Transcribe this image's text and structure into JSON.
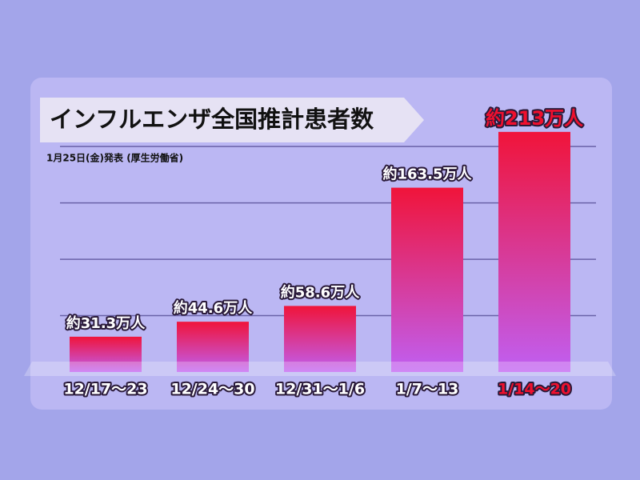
{
  "chart_data": {
    "type": "bar",
    "title": "インフルエンザ全国推計患者数",
    "subtitle": "1月25日(金)発表 (厚生労働省)",
    "categories": [
      "12/17〜23",
      "12/24〜30",
      "12/31〜1/6",
      "1/7〜13",
      "1/14〜20"
    ],
    "values": [
      31.3,
      44.6,
      58.6,
      163.5,
      213
    ],
    "value_labels": [
      "約31.3万人",
      "約44.6万人",
      "約58.6万人",
      "約163.5万人",
      "約213万人"
    ],
    "label_colors": [
      "#ffffff",
      "#ffffff",
      "#ffffff",
      "#ffffff",
      "#f0102e"
    ],
    "color_top": "#f0143a",
    "color_bottom": "#c05ff2",
    "ylim": [
      0,
      220
    ],
    "yticks": [
      50,
      100,
      150,
      200
    ],
    "grid": true
  }
}
